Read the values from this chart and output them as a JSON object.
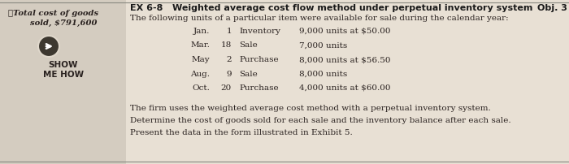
{
  "title": "EX 6-8   Weighted average cost flow method under perpetual inventory system",
  "obj": "Obj. 3",
  "subtitle": "The following units of a particular item were available for sale during the calendar year:",
  "check_line1": "✓Total cost of goods",
  "check_line2": "sold, $791,600",
  "show_me_how": "SHOW\nME HOW",
  "table_rows": [
    [
      "Jan.",
      "1",
      "Inventory",
      "9,000 units at $50.00"
    ],
    [
      "Mar.",
      "18",
      "Sale",
      "7,000 units"
    ],
    [
      "May",
      "2",
      "Purchase",
      "8,000 units at $56.50"
    ],
    [
      "Aug.",
      "9",
      "Sale",
      "8,000 units"
    ],
    [
      "Oct.",
      "20",
      "Purchase",
      "4,000 units at $60.00"
    ]
  ],
  "footer_lines": [
    "The firm uses the weighted average cost method with a perpetual inventory system.",
    "Determine the cost of goods sold for each sale and the inventory balance after each sale.",
    "Present the data in the form illustrated in Exhibit 5."
  ],
  "bg_color": "#e8e0d4",
  "left_bg_color": "#d4ccc0",
  "title_color": "#1a1a1a",
  "body_color": "#2a2220",
  "check_color": "#2a2220",
  "footer_color": "#2a2220",
  "sep_line_color": "#888880",
  "circle_color": "#3d3830",
  "arrow_color": "#ffffff"
}
